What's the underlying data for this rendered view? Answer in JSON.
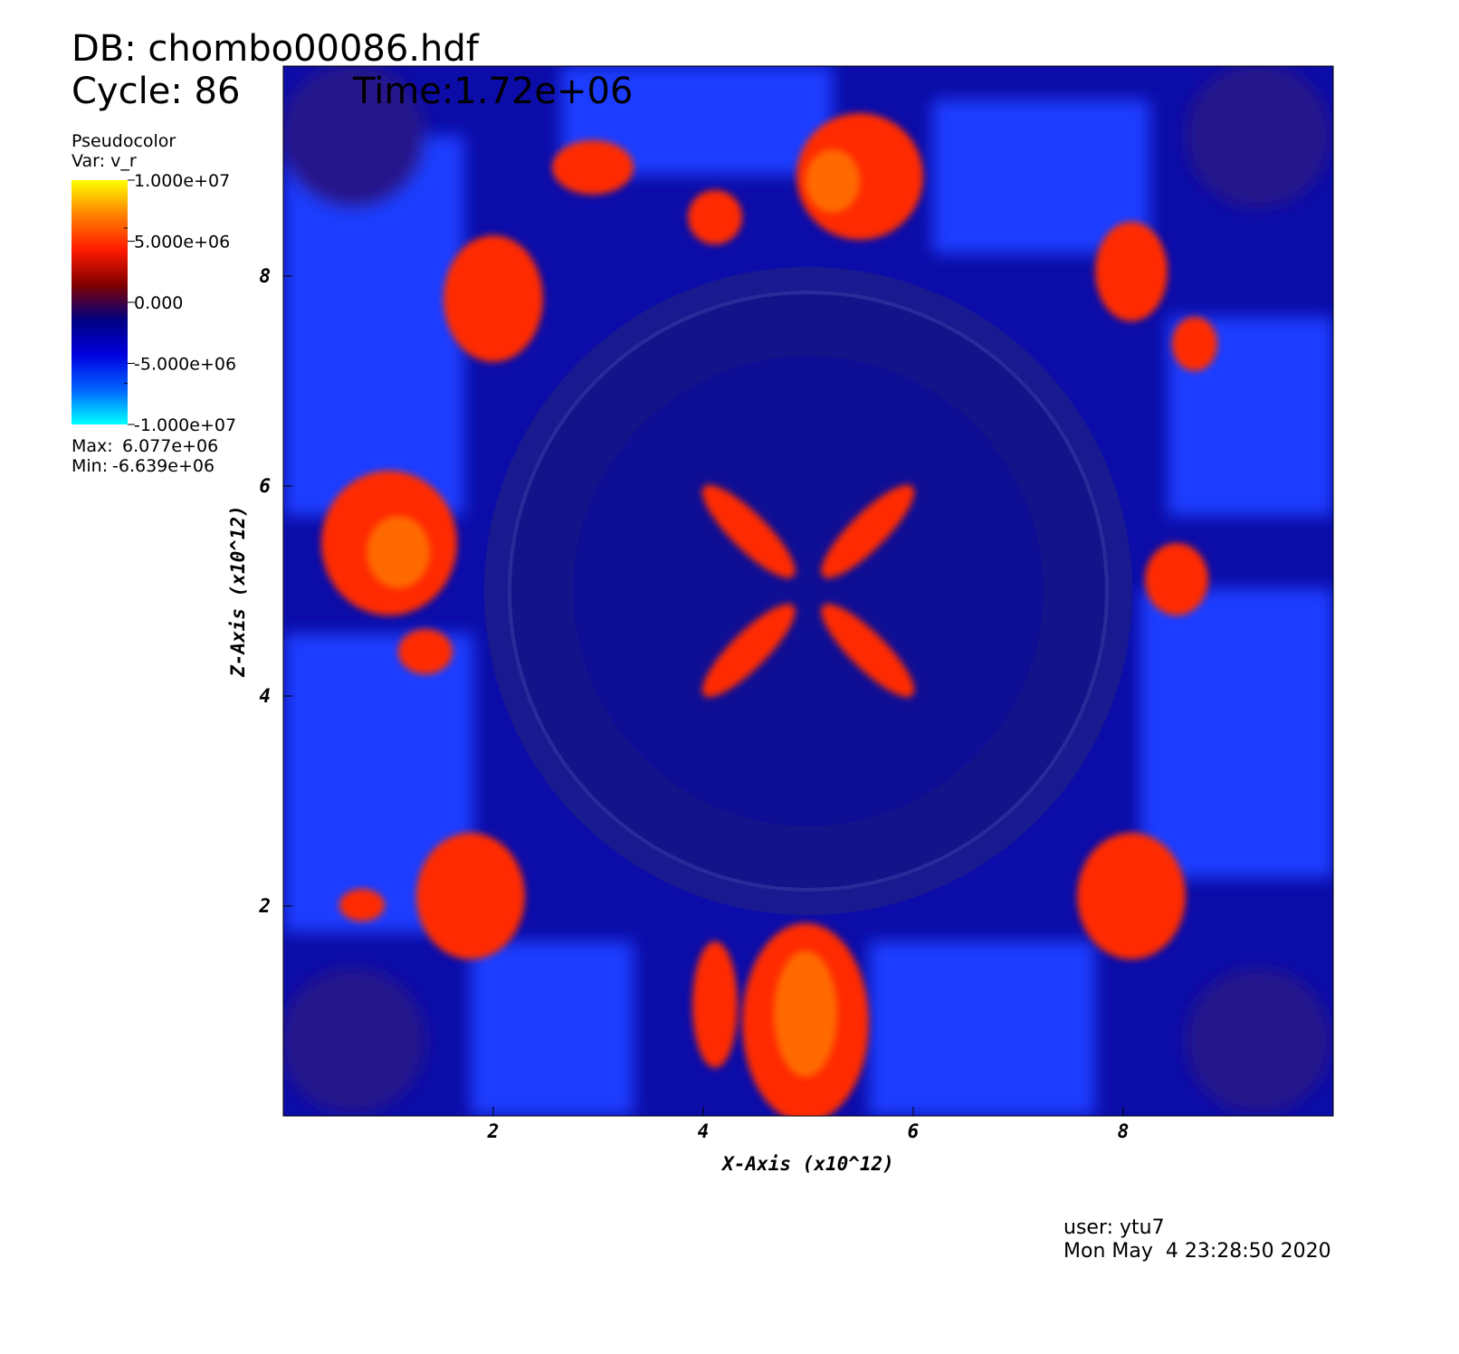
{
  "chart_data": {
    "type": "pseudocolor",
    "db_label": "DB: chombo00086.hdf",
    "cycle_label": "Cycle: 86",
    "time_label": "Time:1.72e+06",
    "legend_title": "Pseudocolor",
    "legend_var": "Var: v_r",
    "colormap": [
      "#00ffff",
      "#0064ff",
      "#0000e0",
      "#000080",
      "#800000",
      "#ff1a00",
      "#ff8000",
      "#ffff00"
    ],
    "clim": [
      -10000000,
      10000000
    ],
    "cticks": [
      {
        "value": 10000000,
        "label": "1.000e+07"
      },
      {
        "value": 5000000,
        "label": "5.000e+06"
      },
      {
        "value": 0,
        "label": "0.000"
      },
      {
        "value": -5000000,
        "label": "-5.000e+06"
      },
      {
        "value": -10000000,
        "label": "-1.000e+07"
      }
    ],
    "max_label": "Max:",
    "max": {
      "value": 6077000,
      "label": "6.077e+06"
    },
    "min_label": "Min:",
    "min": {
      "value": -6639000,
      "label": "-6.639e+06"
    },
    "xlabel": "X-Axis (x10^12)",
    "ylabel": "Z-Axis (x10^12)",
    "xlim": [
      0,
      10
    ],
    "ylim": [
      0,
      10
    ],
    "xticks": [
      2,
      4,
      6,
      8
    ],
    "yticks": [
      2,
      4,
      6,
      8
    ],
    "user": "user: ytu7",
    "date": "Mon May  4 23:28:50 2020"
  }
}
